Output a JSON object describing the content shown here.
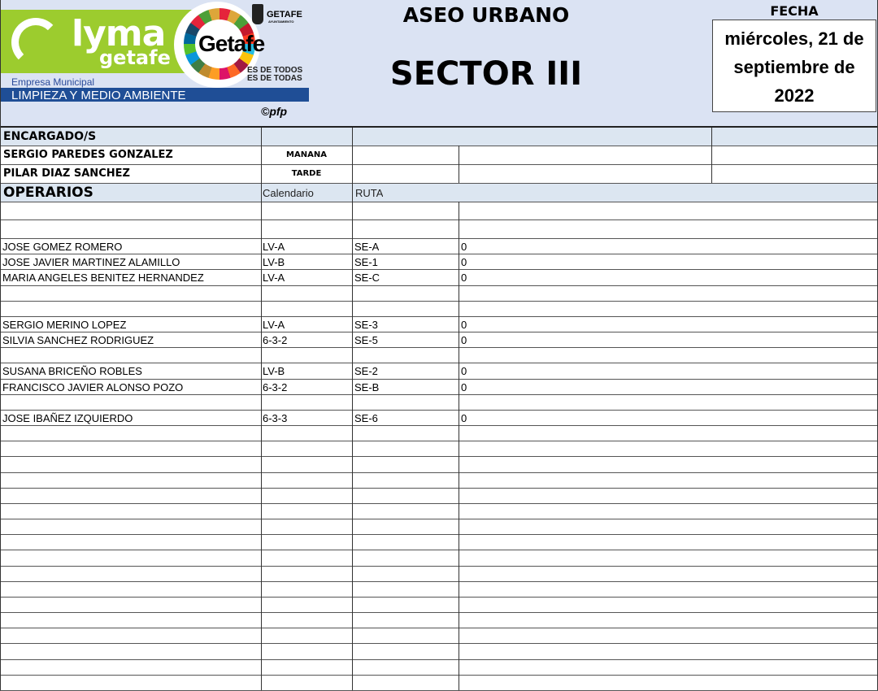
{
  "header": {
    "logo": {
      "brand": "lyma",
      "brand_sub": "getafe",
      "city": "Getafe",
      "ayto_name": "GETAFE",
      "ayto_sub": "AYUNTAMIENTO",
      "slogan_1": "ES DE TODOS",
      "slogan_2": "ES DE TODAS",
      "company_line": "Empresa Municipal",
      "company_name": "LIMPIEZA Y MEDIO AMBIENTE",
      "credit": "©pfp"
    },
    "title": "ASEO URBANO",
    "sector": "SECTOR III",
    "fecha_label": "FECHA",
    "fecha_lines": [
      "miércoles, 21 de",
      "septiembre de",
      "2022"
    ]
  },
  "encargados": {
    "label": "ENCARGADO/S",
    "rows": [
      {
        "name": "SERGIO PAREDES GONZALEZ",
        "turno": "MAÑANA"
      },
      {
        "name": "PILAR DIAZ SANCHEZ",
        "turno": "TARDE"
      }
    ]
  },
  "operarios": {
    "label": "OPERARIOS",
    "col_calendario": "Calendario",
    "col_ruta": "RUTA",
    "rows": [
      {
        "name": "JOSE GOMEZ ROMERO",
        "calendario": "LV-A",
        "ruta": "SE-A",
        "valor": "0"
      },
      {
        "name": "JOSE JAVIER MARTINEZ ALAMILLO",
        "calendario": "LV-B",
        "ruta": "SE-1",
        "valor": "0"
      },
      {
        "name": "MARIA ANGELES BENITEZ HERNANDEZ",
        "calendario": "LV-A",
        "ruta": "SE-C",
        "valor": "0"
      },
      {
        "name": "",
        "calendario": "",
        "ruta": "",
        "valor": ""
      },
      {
        "name": "",
        "calendario": "",
        "ruta": "",
        "valor": ""
      },
      {
        "name": "SERGIO MERINO LOPEZ",
        "calendario": "LV-A",
        "ruta": "SE-3",
        "valor": "0"
      },
      {
        "name": "SILVIA SANCHEZ RODRIGUEZ",
        "calendario": "6-3-2",
        "ruta": "SE-5",
        "valor": "0"
      },
      {
        "name": "",
        "calendario": "",
        "ruta": "",
        "valor": ""
      },
      {
        "name": "SUSANA BRICEÑO ROBLES",
        "calendario": "LV-B",
        "ruta": "SE-2",
        "valor": "0"
      },
      {
        "name": "FRANCISCO JAVIER ALONSO POZO",
        "calendario": "6-3-2",
        "ruta": "SE-B",
        "valor": "0"
      },
      {
        "name": "",
        "calendario": "",
        "ruta": "",
        "valor": ""
      },
      {
        "name": "JOSE IBAÑEZ IZQUIERDO",
        "calendario": "6-3-3",
        "ruta": "SE-6",
        "valor": "0"
      }
    ]
  },
  "colors": {
    "header_bg": "#dbe3f3",
    "section_bg": "#dce6f1",
    "lyma_green": "#9ccc2e",
    "brand_blue": "#1f4e96"
  }
}
